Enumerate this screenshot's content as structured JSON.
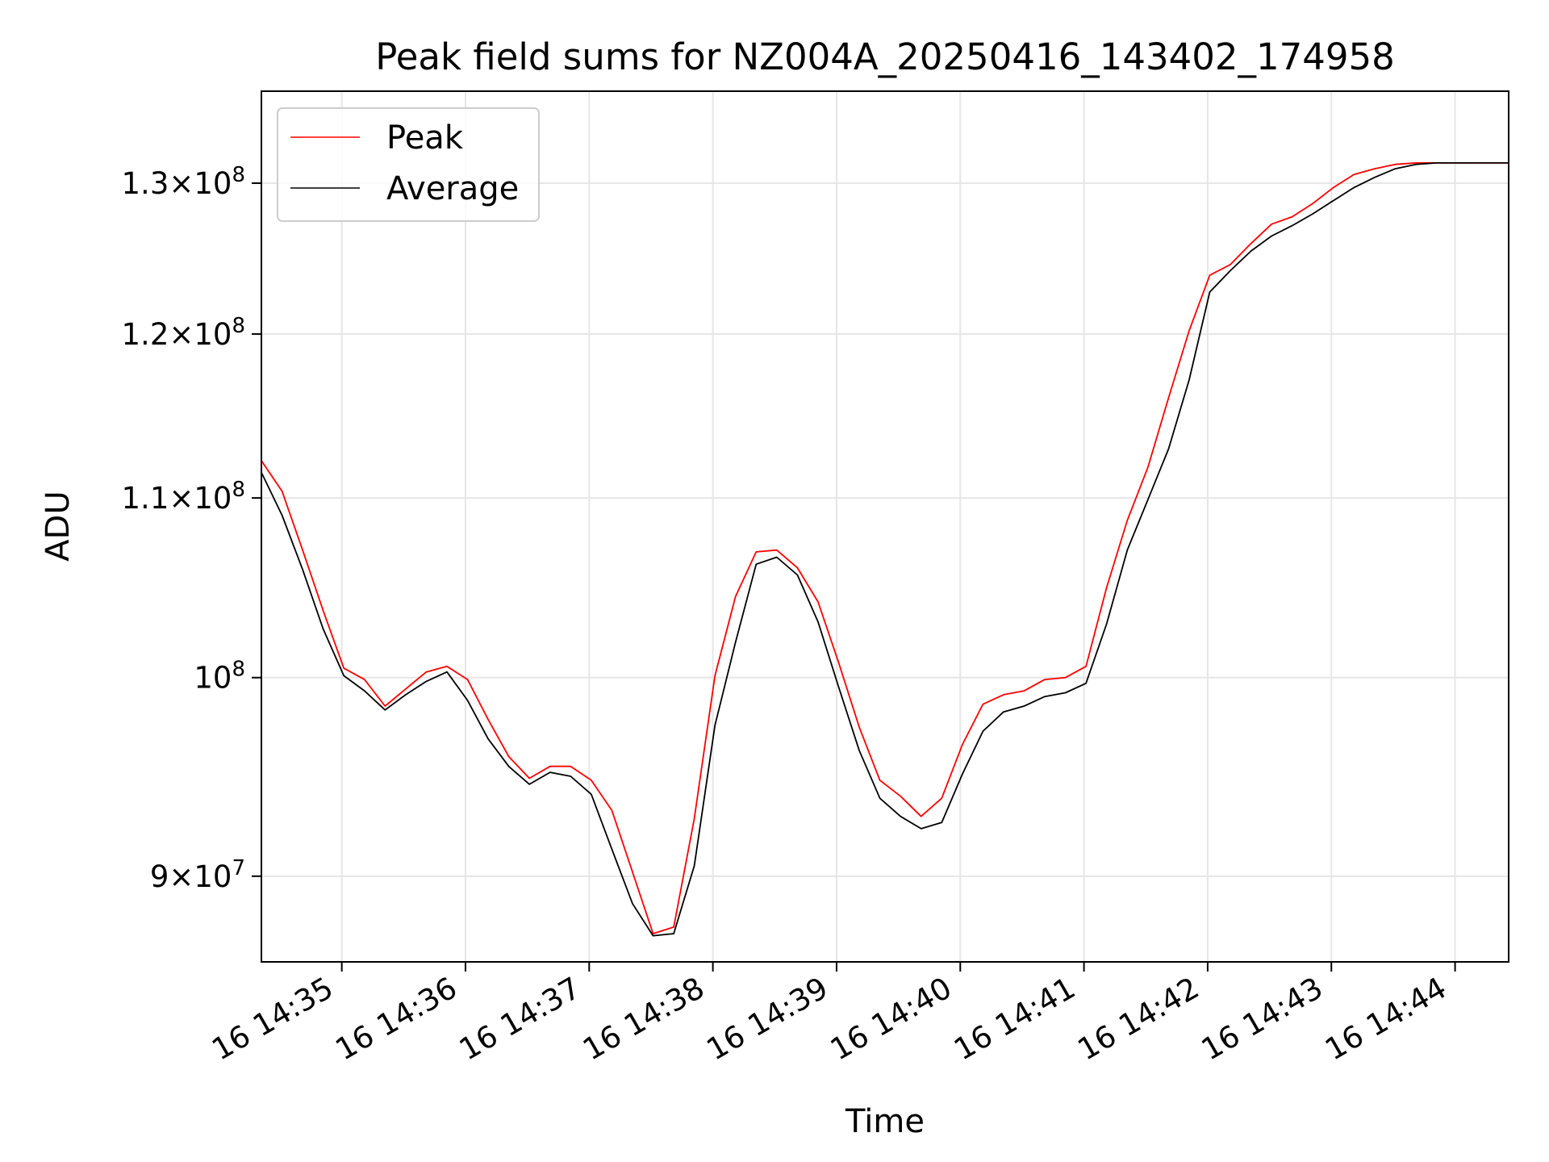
{
  "chart_data": {
    "type": "line",
    "title": "Peak field sums for NZ004A_20250416_143402_174958",
    "xlabel": "Time",
    "ylabel": "ADU",
    "yscale": "log",
    "grid": true,
    "legend_position": "upper-left",
    "x_tick_labels": [
      "16 14:35",
      "16 14:36",
      "16 14:37",
      "16 14:38",
      "16 14:39",
      "16 14:40",
      "16 14:41",
      "16 14:42",
      "16 14:43",
      "16 14:44"
    ],
    "y_ticks": [
      {
        "value": 90000000,
        "mantissa": "9",
        "exponent": "7",
        "form": "sci"
      },
      {
        "value": 100000000,
        "mantissa": "",
        "exponent": "8",
        "form": "pow"
      },
      {
        "value": 110000000,
        "mantissa": "1.1",
        "exponent": "8",
        "form": "sci"
      },
      {
        "value": 120000000,
        "mantissa": "1.2",
        "exponent": "8",
        "form": "sci"
      },
      {
        "value": 130000000,
        "mantissa": "1.3",
        "exponent": "8",
        "form": "sci"
      }
    ],
    "xlim": [
      "14:34:21",
      "14:44:26"
    ],
    "ylim": [
      86000000,
      136500000
    ],
    "x": [
      "14:34:21",
      "14:34:31",
      "14:34:41",
      "14:34:51",
      "14:35:01",
      "14:35:11",
      "14:35:21",
      "14:35:31",
      "14:35:41",
      "14:35:51",
      "14:36:01",
      "14:36:11",
      "14:36:21",
      "14:36:31",
      "14:36:41",
      "14:36:51",
      "14:37:01",
      "14:37:11",
      "14:37:21",
      "14:37:31",
      "14:37:41",
      "14:37:51",
      "14:38:01",
      "14:38:11",
      "14:38:21",
      "14:38:31",
      "14:38:41",
      "14:38:51",
      "14:39:01",
      "14:39:11",
      "14:39:21",
      "14:39:31",
      "14:39:41",
      "14:39:51",
      "14:40:01",
      "14:40:11",
      "14:40:21",
      "14:40:31",
      "14:40:41",
      "14:40:51",
      "14:41:01",
      "14:41:11",
      "14:41:21",
      "14:41:31",
      "14:41:41",
      "14:41:51",
      "14:42:01",
      "14:42:11",
      "14:42:21",
      "14:42:31",
      "14:42:41",
      "14:42:51",
      "14:43:01",
      "14:43:11",
      "14:43:21",
      "14:43:31",
      "14:43:41",
      "14:43:51",
      "14:44:01",
      "14:44:11",
      "14:44:21",
      "14:44:26"
    ],
    "series": [
      {
        "name": "Peak",
        "color": "#ff0000",
        "values": [
          112200000,
          110400000,
          107000000,
          103600000,
          100500000,
          99900000,
          98500000,
          99400000,
          100300000,
          100600000,
          99900000,
          97800000,
          95900000,
          94800000,
          95400000,
          95400000,
          94700000,
          93200000,
          90200000,
          87300000,
          87600000,
          92800000,
          100100000,
          104400000,
          106900000,
          107000000,
          106000000,
          104100000,
          100800000,
          97400000,
          94700000,
          93900000,
          92900000,
          93800000,
          96500000,
          98600000,
          99100000,
          99300000,
          99900000,
          100000000,
          100600000,
          104900000,
          108700000,
          111800000,
          116000000,
          120200000,
          123800000,
          124500000,
          125900000,
          127200000,
          127700000,
          128600000,
          129700000,
          130600000,
          131000000,
          131300000,
          131400000,
          131400000,
          131400000,
          131400000,
          131400000,
          131400000
        ]
      },
      {
        "name": "Average",
        "color": "#000000",
        "values": [
          111500000,
          109000000,
          105900000,
          102600000,
          100100000,
          99300000,
          98300000,
          99100000,
          99800000,
          100300000,
          98800000,
          96800000,
          95400000,
          94500000,
          95100000,
          94900000,
          94000000,
          91300000,
          88700000,
          87200000,
          87300000,
          90500000,
          97500000,
          101900000,
          106200000,
          106600000,
          105600000,
          103000000,
          99500000,
          96200000,
          93800000,
          92900000,
          92300000,
          92600000,
          95000000,
          97200000,
          98200000,
          98500000,
          99000000,
          99200000,
          99700000,
          102900000,
          107000000,
          109900000,
          112900000,
          117100000,
          122700000,
          124100000,
          125400000,
          126400000,
          127100000,
          127900000,
          128800000,
          129700000,
          130400000,
          131000000,
          131300000,
          131400000,
          131400000,
          131400000,
          131400000,
          131400000
        ]
      }
    ]
  }
}
